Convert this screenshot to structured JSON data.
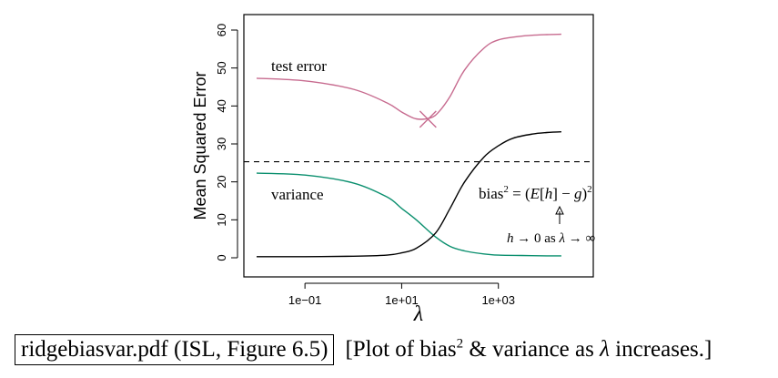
{
  "chart_data": {
    "type": "line",
    "xlabel": "λ",
    "ylabel": "Mean Squared Error",
    "x_scale": "log10",
    "xlim": [
      0.01,
      50000
    ],
    "ylim": [
      0,
      60
    ],
    "yticks": [
      0,
      10,
      20,
      30,
      40,
      50,
      60
    ],
    "xticks": [
      {
        "value": 0.1,
        "label": "1e−01"
      },
      {
        "value": 10,
        "label": "1e+01"
      },
      {
        "value": 1000,
        "label": "1e+03"
      }
    ],
    "series": [
      {
        "name": "test error",
        "color": "#c76b8f",
        "x": [
          0.01,
          0.1,
          1,
          5,
          10,
          20,
          40,
          60,
          100,
          200,
          500,
          1000,
          3000,
          10000,
          20000
        ],
        "y": [
          47.3,
          46.6,
          44.4,
          40.8,
          38.4,
          36.6,
          36.9,
          38.6,
          42.5,
          49.5,
          55.2,
          57.4,
          58.4,
          58.8,
          58.9
        ]
      },
      {
        "name": "variance",
        "color": "#0a8f6e",
        "x": [
          0.01,
          0.1,
          1,
          5,
          10,
          20,
          50,
          100,
          200,
          500,
          1000,
          3000,
          10000,
          20000
        ],
        "y": [
          22.3,
          21.8,
          19.7,
          16.0,
          13.0,
          10.0,
          5.5,
          3.0,
          1.8,
          1.0,
          0.7,
          0.6,
          0.5,
          0.5
        ]
      },
      {
        "name": "bias²",
        "color": "#000000",
        "x": [
          0.01,
          0.1,
          1,
          5,
          10,
          20,
          50,
          100,
          200,
          500,
          1000,
          2000,
          5000,
          10000,
          20000
        ],
        "y": [
          0.3,
          0.3,
          0.4,
          0.7,
          1.3,
          2.5,
          6.5,
          13.0,
          20.0,
          26.5,
          29.5,
          31.5,
          32.6,
          33.0,
          33.2
        ]
      }
    ],
    "reference_line": {
      "y": 25.3,
      "style": "dashed"
    },
    "marker": {
      "x": 35,
      "y": 36.5,
      "symbol": "x",
      "color": "#c76b8f"
    },
    "annotations": {
      "test_error": "test error",
      "variance": "variance",
      "bias_prefix": "bias",
      "bias_eq": " = (",
      "bias_E": "E",
      "bias_lb": "[",
      "bias_h": "h",
      "bias_rb": "]",
      "bias_minus": " − ",
      "bias_g": "g",
      "bias_close": ")",
      "sup2": "2",
      "h_var": "h",
      "limit_rest": " → 0 as ",
      "lambda": "λ",
      "arrow_inf": " → ∞"
    }
  },
  "caption": {
    "file": "ridgebiasvar.pdf (ISL, Figure 6.5)",
    "text_before": "[Plot of bias",
    "sup": "2",
    "text_mid": " & variance as ",
    "lambda": "λ",
    "text_after": " increases.]"
  }
}
